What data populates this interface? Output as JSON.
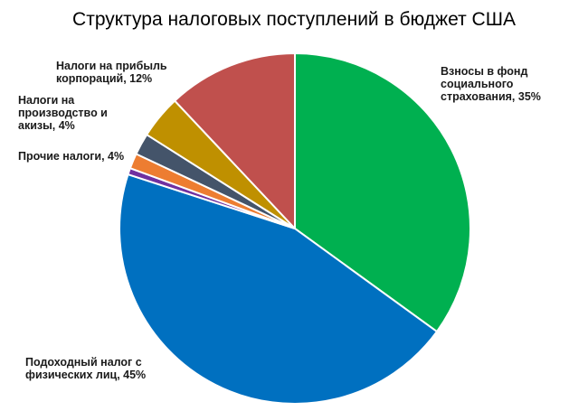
{
  "chart_data": {
    "type": "pie",
    "title": "Структура налоговых поступлений в бюджет США",
    "slices": [
      {
        "value": 35,
        "color": "#00b050",
        "label": "Взносы в фонд социального страхования, 35%"
      },
      {
        "value": 45,
        "color": "#0070c0",
        "label": "Подоходный налог с физических лиц, 45%"
      },
      {
        "value": 0.6,
        "color": "#7030a0",
        "label": ""
      },
      {
        "value": 1.4,
        "color": "#ed7d31",
        "label": "Прочие налоги, 4%"
      },
      {
        "value": 2.0,
        "color": "#44546a",
        "label": ""
      },
      {
        "value": 4,
        "color": "#bf9000",
        "label": "Налоги на производство и акизы, 4%"
      },
      {
        "value": 12,
        "color": "#c0504d",
        "label": "Налоги на прибыль корпораций, 12%"
      }
    ]
  }
}
